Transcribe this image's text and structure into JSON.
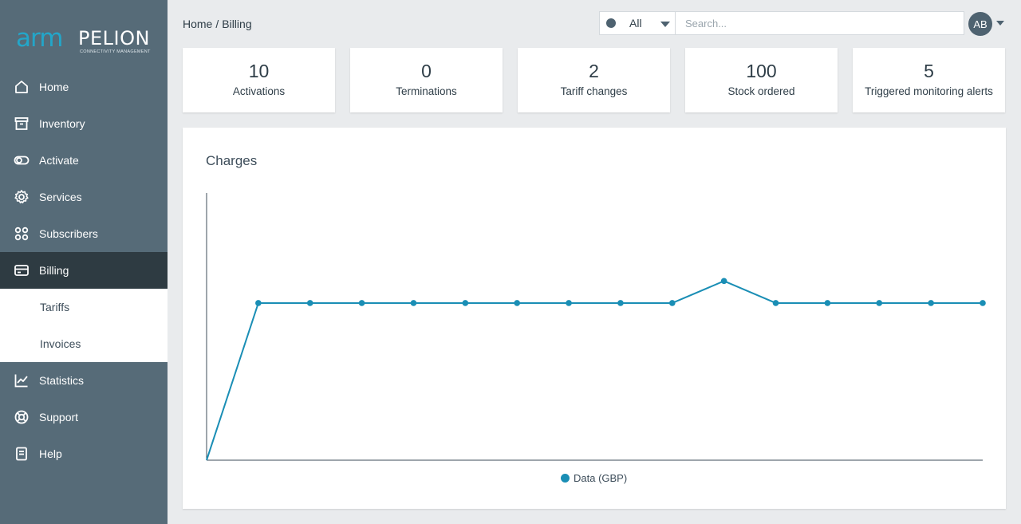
{
  "app": {
    "logo": {
      "arm": "arm",
      "pelion": "PELION",
      "tagline": "CONNECTIVITY MANAGEMENT"
    }
  },
  "sidebar": {
    "items": [
      {
        "label": "Home",
        "icon": "home-icon"
      },
      {
        "label": "Inventory",
        "icon": "archive-icon"
      },
      {
        "label": "Activate",
        "icon": "toggle-icon"
      },
      {
        "label": "Services",
        "icon": "gear-icon"
      },
      {
        "label": "Subscribers",
        "icon": "grid-dots-icon"
      },
      {
        "label": "Billing",
        "icon": "credit-card-icon",
        "active": true
      },
      {
        "label": "Statistics",
        "icon": "line-chart-icon"
      },
      {
        "label": "Support",
        "icon": "lifebuoy-icon"
      },
      {
        "label": "Help",
        "icon": "document-icon"
      }
    ],
    "billing_sub": [
      {
        "label": "Tariffs"
      },
      {
        "label": "Invoices"
      }
    ]
  },
  "header": {
    "breadcrumb": {
      "home": "Home",
      "sep": "/",
      "current": "Billing"
    },
    "filter": {
      "value": "All"
    },
    "search": {
      "placeholder": "Search..."
    },
    "avatar": {
      "initials": "AB"
    }
  },
  "stats": [
    {
      "value": "10",
      "label": "Activations"
    },
    {
      "value": "0",
      "label": "Terminations"
    },
    {
      "value": "2",
      "label": "Tariff changes"
    },
    {
      "value": "100",
      "label": "Stock ordered"
    },
    {
      "value": "5",
      "label": "Triggered monitoring alerts"
    }
  ],
  "colors": {
    "sidebar": "#566b78",
    "sidebar_active": "#2e3b42",
    "accent": "#1a8eb5",
    "logo_arm": "#23a6c9"
  },
  "chart_data": {
    "type": "line",
    "title": "Charges",
    "series": [
      {
        "name": "Data (GBP)",
        "values": [
          0,
          10,
          10,
          10,
          10,
          10,
          10,
          10,
          10,
          10,
          11.4,
          10,
          10,
          10,
          10,
          10
        ]
      }
    ],
    "ylim": [
      0,
      17
    ],
    "grid": false,
    "legend": "bottom-center"
  }
}
